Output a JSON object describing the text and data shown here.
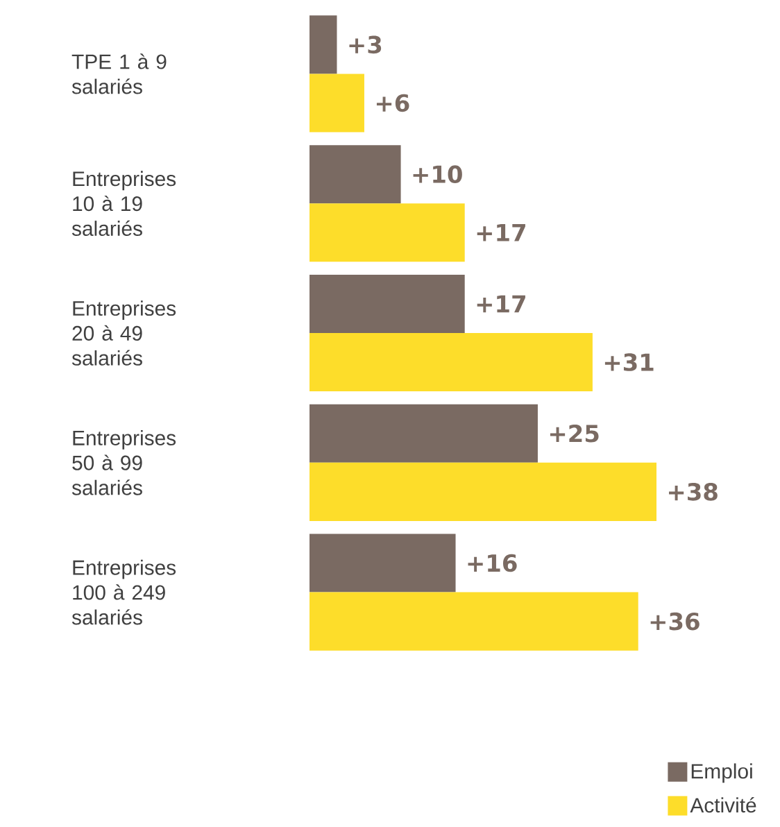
{
  "chart_data": {
    "type": "bar",
    "orientation": "horizontal",
    "legend": "bottom right",
    "categories": [
      "TPE 1 à 9 salariés",
      "Entreprises 10 à 19 salariés",
      "Entreprises 20 à 49 salariés",
      "Entreprises 50 à 99 salariés",
      "Entreprises 100 à 249 salariés"
    ],
    "series": [
      {
        "name": "Emploi",
        "color": "#7a6a62",
        "values": [
          3,
          10,
          17,
          25,
          16
        ],
        "value_labels": [
          "+3",
          "+10",
          "+17",
          "+25",
          "+16"
        ]
      },
      {
        "name": "Activité",
        "color": "#fddd2a",
        "values": [
          6,
          17,
          31,
          38,
          36
        ],
        "value_labels": [
          "+6",
          "+17",
          "+31",
          "+38",
          "+36"
        ]
      }
    ]
  }
}
